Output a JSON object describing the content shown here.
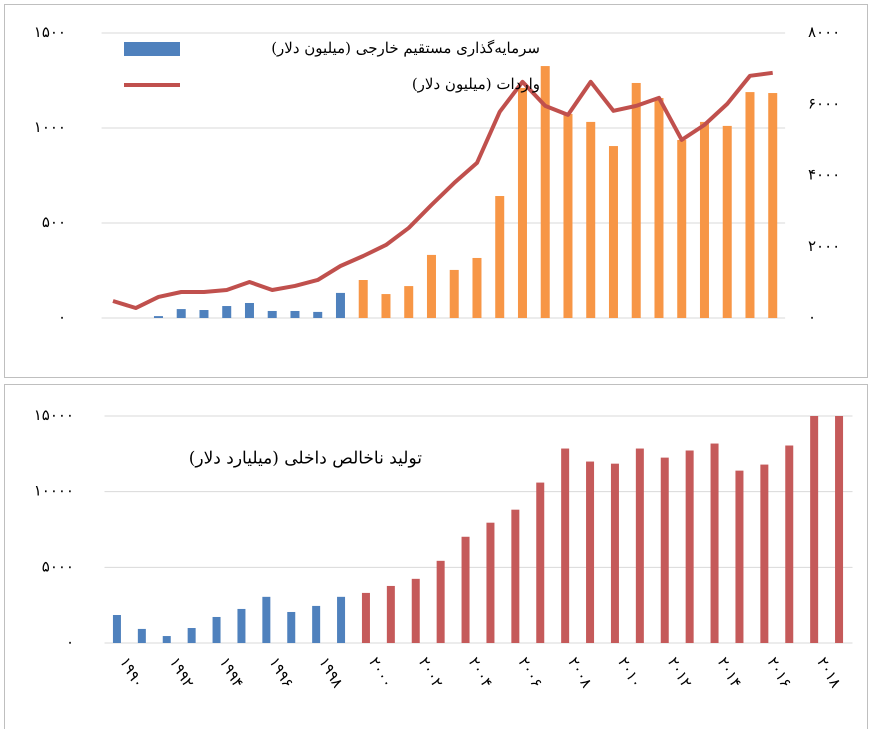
{
  "chart_data": [
    {
      "type": "combo",
      "series": [
        {
          "name": "سرمایه‌گذاری مستقیم خارجی (میلیون دلار)",
          "type": "bar",
          "color": "#4f81bd",
          "colors": [
            "#4f81bd",
            "#4f81bd",
            "#4f81bd",
            "#4f81bd",
            "#4f81bd",
            "#4f81bd",
            "#4f81bd",
            "#4f81bd",
            "#4f81bd",
            "#4f81bd",
            "#4f81bd",
            "#f79646",
            "#f79646",
            "#f79646",
            "#f79646",
            "#f79646",
            "#f79646",
            "#f79646",
            "#f79646",
            "#f79646",
            "#f79646",
            "#f79646",
            "#f79646",
            "#f79646",
            "#f79646",
            "#f79646",
            "#f79646",
            "#f79646",
            "#f79646",
            "#f79646"
          ],
          "values": [
            0,
            0,
            10,
            47,
            42,
            63,
            79,
            37,
            37,
            32,
            132,
            200,
            126,
            168,
            332,
            253,
            316,
            642,
            1211,
            1326,
            1074,
            1032,
            905,
            1237,
            1158,
            937,
            1032,
            1011,
            1189,
            1184
          ]
        },
        {
          "name": "واردات (میلیون دلار)",
          "type": "line",
          "color": "#c0504d",
          "axis": "y2",
          "values": [
            477,
            280,
            590,
            730,
            730,
            786,
            1011,
            786,
            900,
            1067,
            1460,
            1740,
            2050,
            2528,
            3174,
            3792,
            4354,
            5787,
            6630,
            5955,
            5702,
            6630,
            5815,
            5955,
            6180,
            5000,
            5421,
            6011,
            6798,
            6882
          ]
        }
      ],
      "ylim": [
        0,
        1500
      ],
      "yticks": [
        {
          "value": 0,
          "label": "۰"
        },
        {
          "value": 500,
          "label": "۵۰۰"
        },
        {
          "value": 1000,
          "label": "۱۰۰۰"
        },
        {
          "value": 1500,
          "label": "۱۵۰۰"
        }
      ],
      "y2lim": [
        0,
        8000
      ],
      "y2ticks": [
        {
          "value": 0,
          "label": "۰"
        },
        {
          "value": 2000,
          "label": "۲۰۰۰"
        },
        {
          "value": 4000,
          "label": "۴۰۰۰"
        },
        {
          "value": 6000,
          "label": "۶۰۰۰"
        },
        {
          "value": 8000,
          "label": "۸۰۰۰"
        }
      ],
      "grid": true
    },
    {
      "type": "bar",
      "title": "تولید ناخالص داخلی (میلیارد دلار)",
      "categories": [
        "۱۹۹۰",
        null,
        "۱۹۹۲",
        null,
        "۱۹۹۴",
        null,
        "۱۹۹۶",
        null,
        "۱۹۹۸",
        null,
        "۲۰۰۰",
        null,
        "۲۰۰۲",
        null,
        "۲۰۰۴",
        null,
        "۲۰۰۶",
        null,
        "۲۰۰۸",
        null,
        "۲۰۱۰",
        null,
        "۲۰۱۲",
        null,
        "۲۰۱۴",
        null,
        "۲۰۱۶",
        null,
        "۲۰۱۸",
        null
      ],
      "values": [
        1850,
        930,
        460,
        990,
        1720,
        2250,
        3050,
        2050,
        2450,
        3050,
        3310,
        3770,
        4240,
        5430,
        7020,
        7950,
        8810,
        10600,
        12850,
        11990,
        11850,
        12850,
        12250,
        12720,
        13180,
        11390,
        11790,
        13050,
        15000,
        15000
      ],
      "colors": [
        "#4f81bd",
        "#4f81bd",
        "#4f81bd",
        "#4f81bd",
        "#4f81bd",
        "#4f81bd",
        "#4f81bd",
        "#4f81bd",
        "#4f81bd",
        "#4f81bd",
        "#c55a5a",
        "#c55a5a",
        "#c55a5a",
        "#c55a5a",
        "#c55a5a",
        "#c55a5a",
        "#c55a5a",
        "#c55a5a",
        "#c55a5a",
        "#c55a5a",
        "#c55a5a",
        "#c55a5a",
        "#c55a5a",
        "#c55a5a",
        "#c55a5a",
        "#c55a5a",
        "#c55a5a",
        "#c55a5a",
        "#c55a5a",
        "#c55a5a"
      ],
      "ylim": [
        0,
        15000
      ],
      "yticks": [
        {
          "value": 0,
          "label": "۰"
        },
        {
          "value": 5000,
          "label": "۵۰۰۰"
        },
        {
          "value": 10000,
          "label": "۱۰۰۰۰"
        },
        {
          "value": 15000,
          "label": "۱۵۰۰۰"
        }
      ],
      "grid": true
    }
  ]
}
